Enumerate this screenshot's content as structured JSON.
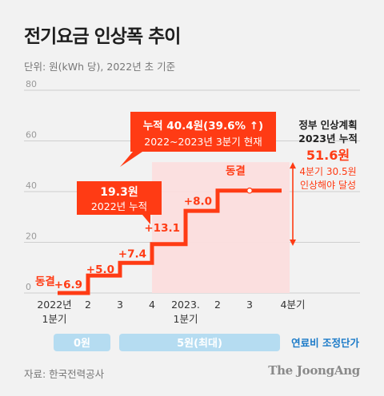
{
  "title": "전기요금 인상폭 추이",
  "unit_note": "단위: 원(kWh 당), 2022년 초 기준",
  "source": "자료: 한국전력공사",
  "logo": "The JoongAng",
  "colors": {
    "accent": "#ff3b14",
    "plan_fill": "#fcdede",
    "fuel_bar": "#b5dcf1",
    "fuel_text": "#1a7ac8",
    "axis_text": "#999999",
    "grid": "#cfcfcf"
  },
  "chart_data": {
    "type": "line",
    "step": true,
    "ylim": [
      0,
      80
    ],
    "yticks": [
      0,
      20,
      40,
      60,
      80
    ],
    "ytick_labels": [
      "0",
      "20",
      "40",
      "60",
      "80"
    ],
    "categories": [
      [
        "2022년",
        "1분기"
      ],
      [
        "2"
      ],
      [
        "3"
      ],
      [
        "4"
      ],
      [
        "2023.",
        "1분기"
      ],
      [
        "2"
      ],
      [
        "3"
      ],
      [
        "4분기"
      ]
    ],
    "values": [
      0,
      6.9,
      11.9,
      19.3,
      32.4,
      40.4,
      40.4,
      40.4
    ],
    "increments": [
      {
        "index": 0,
        "label": "동결"
      },
      {
        "index": 1,
        "label": "+6.9"
      },
      {
        "index": 2,
        "label": "+5.0"
      },
      {
        "index": 3,
        "label": "+7.4"
      },
      {
        "index": 4,
        "label": "+13.1"
      },
      {
        "index": 5,
        "label": "+8.0"
      },
      {
        "index": 6,
        "label": "동결"
      }
    ],
    "plan": {
      "target": 51.6,
      "lines": [
        "정부 인상계획",
        "2023년 누적"
      ],
      "value_label": "51.6원",
      "notes": [
        "4분기 30.5원",
        "인상해야 달성"
      ]
    },
    "callouts": [
      {
        "index": 3,
        "lines": [
          "19.3원",
          "2022년 누적"
        ]
      },
      {
        "index": 6,
        "lines": [
          "누적 40.4원(39.6% ↑)",
          "2022~2023년 3분기 현재"
        ]
      }
    ],
    "fuel_cost": {
      "label": "연료비 조정단가",
      "segments": [
        {
          "from": 0,
          "to": 1,
          "label": "0원"
        },
        {
          "from": 2,
          "to": 7,
          "label": "5원(최대)"
        }
      ]
    }
  }
}
